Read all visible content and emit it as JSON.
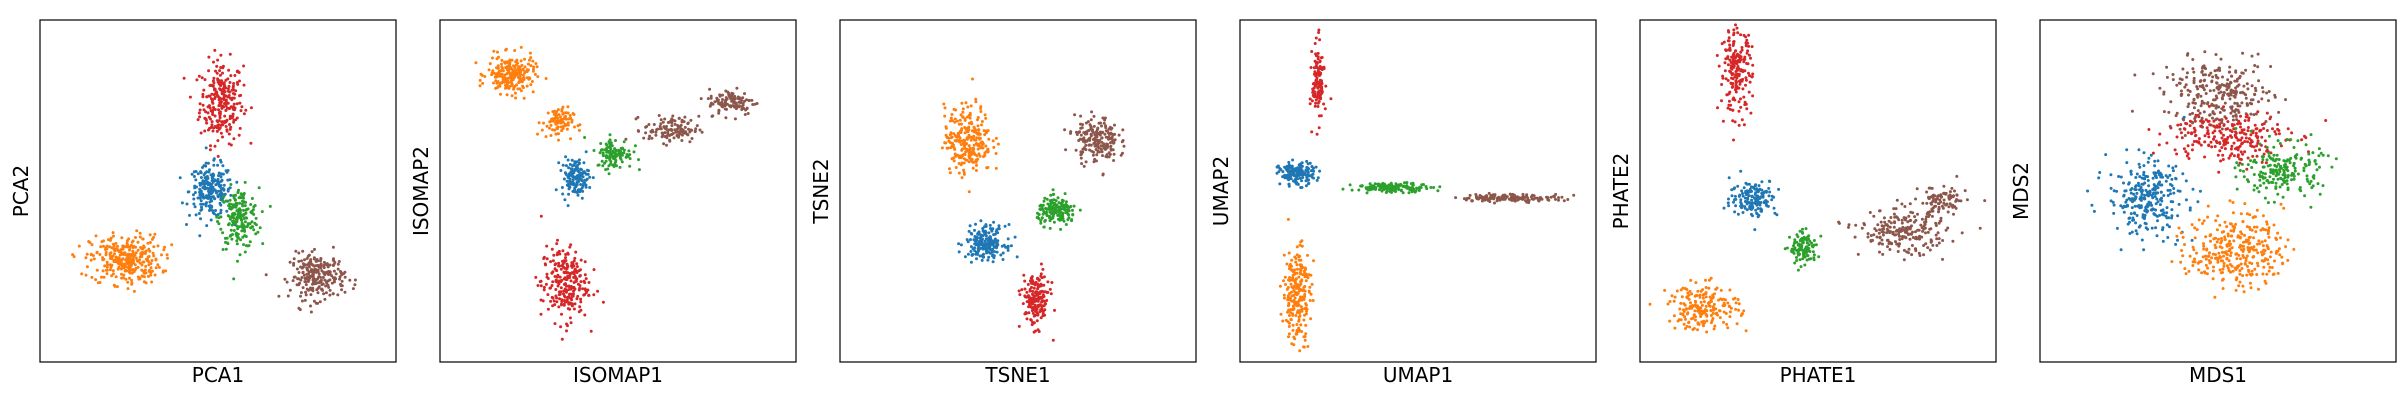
{
  "palette": {
    "blue": "#1f77b4",
    "orange": "#ff7f0e",
    "green": "#2ca02c",
    "red": "#d62728",
    "brown": "#8c564b"
  },
  "chart_data": [
    {
      "type": "scatter",
      "xlabel": "PCA1",
      "ylabel": "PCA2",
      "xlim": [
        0,
        10
      ],
      "ylim": [
        0,
        10
      ],
      "ticks": "none",
      "series": [
        {
          "color": "red",
          "clusters": [
            {
              "x": 5.1,
              "y": 7.6,
              "sx": 0.55,
              "sy": 1.1,
              "n": 260
            }
          ]
        },
        {
          "color": "blue",
          "clusters": [
            {
              "x": 4.8,
              "y": 5.0,
              "sx": 0.55,
              "sy": 0.7,
              "n": 220
            }
          ]
        },
        {
          "color": "green",
          "clusters": [
            {
              "x": 5.6,
              "y": 4.2,
              "sx": 0.5,
              "sy": 0.8,
              "n": 200
            }
          ]
        },
        {
          "color": "orange",
          "clusters": [
            {
              "x": 2.4,
              "y": 3.0,
              "sx": 0.9,
              "sy": 0.65,
              "n": 320
            }
          ]
        },
        {
          "color": "brown",
          "clusters": [
            {
              "x": 7.8,
              "y": 2.5,
              "sx": 0.7,
              "sy": 0.6,
              "n": 240
            }
          ]
        }
      ]
    },
    {
      "type": "scatter",
      "xlabel": "ISOMAP1",
      "ylabel": "ISOMAP2",
      "xlim": [
        0,
        10
      ],
      "ylim": [
        0,
        10
      ],
      "ticks": "none",
      "series": [
        {
          "color": "orange",
          "clusters": [
            {
              "x": 2.0,
              "y": 8.4,
              "sx": 0.6,
              "sy": 0.5,
              "n": 220
            },
            {
              "x": 3.3,
              "y": 7.0,
              "sx": 0.4,
              "sy": 0.4,
              "n": 90
            }
          ]
        },
        {
          "color": "brown",
          "clusters": [
            {
              "x": 6.5,
              "y": 6.8,
              "sx": 0.7,
              "sy": 0.35,
              "n": 120
            },
            {
              "x": 8.2,
              "y": 7.6,
              "sx": 0.6,
              "sy": 0.35,
              "n": 110
            }
          ]
        },
        {
          "color": "green",
          "clusters": [
            {
              "x": 4.9,
              "y": 6.1,
              "sx": 0.45,
              "sy": 0.4,
              "n": 110
            }
          ]
        },
        {
          "color": "blue",
          "clusters": [
            {
              "x": 3.8,
              "y": 5.4,
              "sx": 0.35,
              "sy": 0.5,
              "n": 140
            }
          ]
        },
        {
          "color": "red",
          "clusters": [
            {
              "x": 3.5,
              "y": 2.3,
              "sx": 0.6,
              "sy": 1.0,
              "n": 250
            }
          ]
        }
      ]
    },
    {
      "type": "scatter",
      "xlabel": "TSNE1",
      "ylabel": "TSNE2",
      "xlim": [
        0,
        10
      ],
      "ylim": [
        0,
        10
      ],
      "ticks": "none",
      "series": [
        {
          "color": "orange",
          "clusters": [
            {
              "x": 3.6,
              "y": 6.5,
              "sx": 0.6,
              "sy": 0.9,
              "n": 260
            }
          ]
        },
        {
          "color": "brown",
          "clusters": [
            {
              "x": 7.2,
              "y": 6.5,
              "sx": 0.55,
              "sy": 0.6,
              "n": 200
            }
          ]
        },
        {
          "color": "green",
          "clusters": [
            {
              "x": 6.1,
              "y": 4.4,
              "sx": 0.5,
              "sy": 0.35,
              "n": 170
            }
          ]
        },
        {
          "color": "blue",
          "clusters": [
            {
              "x": 4.1,
              "y": 3.5,
              "sx": 0.5,
              "sy": 0.45,
              "n": 200
            }
          ]
        },
        {
          "color": "red",
          "clusters": [
            {
              "x": 5.5,
              "y": 1.8,
              "sx": 0.35,
              "sy": 0.7,
              "n": 180
            }
          ]
        }
      ]
    },
    {
      "type": "scatter",
      "xlabel": "UMAP1",
      "ylabel": "UMAP2",
      "xlim": [
        0,
        10
      ],
      "ylim": [
        0,
        10
      ],
      "ticks": "none",
      "series": [
        {
          "color": "red",
          "clusters": [
            {
              "x": 2.2,
              "y": 8.2,
              "sx": 0.15,
              "sy": 1.0,
              "n": 130
            }
          ]
        },
        {
          "color": "blue",
          "clusters": [
            {
              "x": 1.6,
              "y": 5.5,
              "sx": 0.45,
              "sy": 0.3,
              "n": 160
            }
          ]
        },
        {
          "color": "green",
          "clusters": [
            {
              "x": 4.3,
              "y": 5.1,
              "sx": 1.0,
              "sy": 0.12,
              "n": 140
            }
          ]
        },
        {
          "color": "brown",
          "clusters": [
            {
              "x": 7.6,
              "y": 4.8,
              "sx": 1.3,
              "sy": 0.1,
              "n": 150
            }
          ]
        },
        {
          "color": "orange",
          "clusters": [
            {
              "x": 1.6,
              "y": 2.0,
              "sx": 0.35,
              "sy": 1.3,
              "n": 240
            }
          ]
        }
      ]
    },
    {
      "type": "scatter",
      "xlabel": "PHATE1",
      "ylabel": "PHATE2",
      "xlim": [
        0,
        10
      ],
      "ylim": [
        0,
        10
      ],
      "ticks": "none",
      "series": [
        {
          "color": "red",
          "clusters": [
            {
              "x": 2.7,
              "y": 8.5,
              "sx": 0.4,
              "sy": 1.1,
              "n": 200
            }
          ]
        },
        {
          "color": "blue",
          "clusters": [
            {
              "x": 3.2,
              "y": 4.8,
              "sx": 0.6,
              "sy": 0.5,
              "n": 160
            }
          ]
        },
        {
          "color": "green",
          "clusters": [
            {
              "x": 4.6,
              "y": 3.3,
              "sx": 0.35,
              "sy": 0.4,
              "n": 120
            }
          ]
        },
        {
          "color": "brown",
          "clusters": [
            {
              "x": 7.4,
              "y": 3.8,
              "sx": 1.1,
              "sy": 0.6,
              "n": 220
            },
            {
              "x": 8.5,
              "y": 4.7,
              "sx": 0.6,
              "sy": 0.4,
              "n": 90
            }
          ]
        },
        {
          "color": "orange",
          "clusters": [
            {
              "x": 1.8,
              "y": 1.6,
              "sx": 0.9,
              "sy": 0.6,
              "n": 200
            }
          ]
        }
      ]
    },
    {
      "type": "scatter",
      "xlabel": "MDS1",
      "ylabel": "MDS2",
      "xlim": [
        0,
        10
      ],
      "ylim": [
        0,
        10
      ],
      "ticks": "none",
      "series": [
        {
          "color": "brown",
          "clusters": [
            {
              "x": 5.0,
              "y": 7.8,
              "sx": 1.4,
              "sy": 0.9,
              "n": 280
            }
          ]
        },
        {
          "color": "red",
          "clusters": [
            {
              "x": 5.3,
              "y": 6.6,
              "sx": 1.5,
              "sy": 0.7,
              "n": 240
            }
          ]
        },
        {
          "color": "green",
          "clusters": [
            {
              "x": 6.8,
              "y": 5.6,
              "sx": 1.0,
              "sy": 0.7,
              "n": 200
            }
          ]
        },
        {
          "color": "blue",
          "clusters": [
            {
              "x": 3.0,
              "y": 4.8,
              "sx": 1.0,
              "sy": 1.0,
              "n": 280
            }
          ]
        },
        {
          "color": "orange",
          "clusters": [
            {
              "x": 5.5,
              "y": 3.3,
              "sx": 1.2,
              "sy": 1.0,
              "n": 320
            }
          ]
        }
      ]
    }
  ]
}
